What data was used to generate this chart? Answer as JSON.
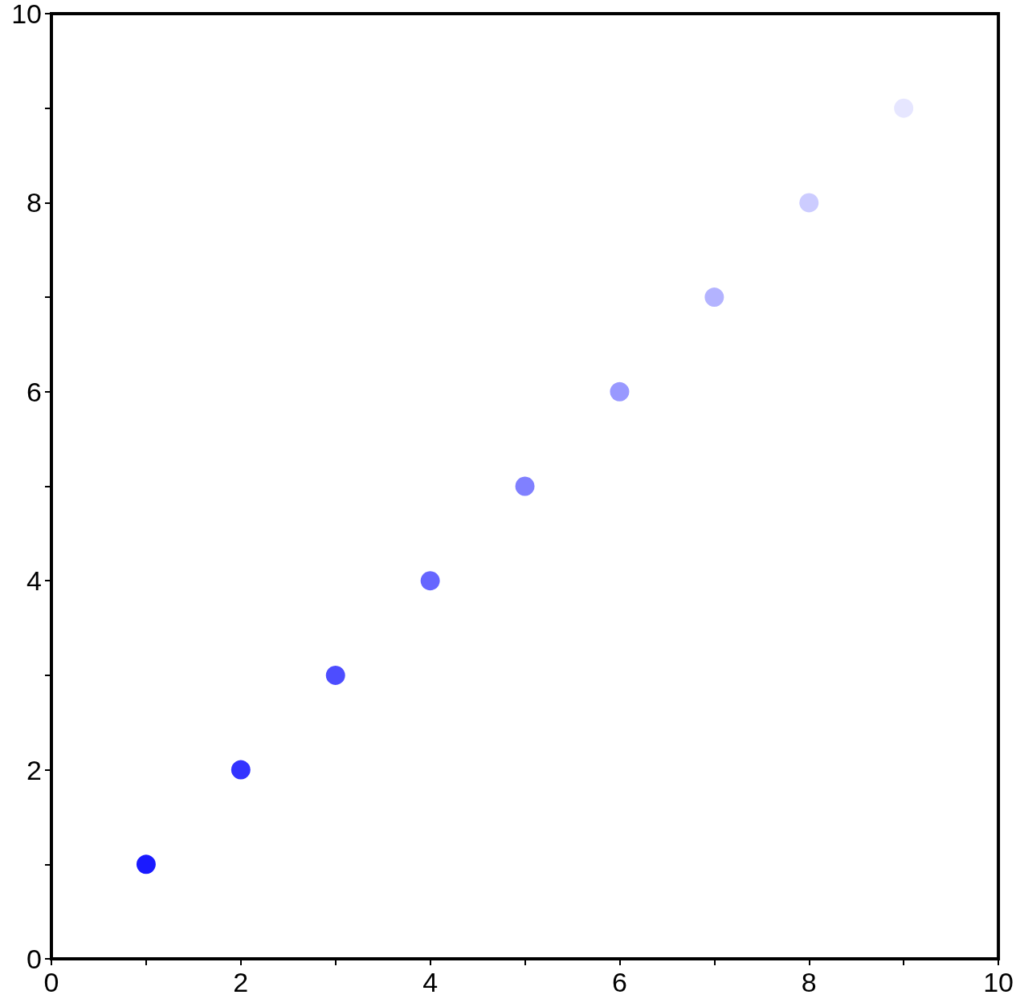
{
  "chart_data": {
    "type": "scatter",
    "x": [
      1,
      2,
      3,
      4,
      5,
      6,
      7,
      8,
      9
    ],
    "values": [
      1,
      2,
      3,
      4,
      5,
      6,
      7,
      8,
      9
    ],
    "colors": [
      "#1a1aff",
      "#3333ff",
      "#4d4dff",
      "#6666ff",
      "#8080ff",
      "#9999ff",
      "#b3b3ff",
      "#ccccff",
      "#e6e6ff"
    ],
    "xlim": [
      0,
      10
    ],
    "xticks": [
      0,
      {
        "value": 1,
        "label": null
      },
      2,
      {
        "value": 3,
        "label": null
      },
      4,
      {
        "value": 5,
        "label": null
      },
      6,
      {
        "value": 7,
        "label": null
      },
      8,
      {
        "value": 9,
        "label": null
      },
      10
    ],
    "ylim": [
      0,
      10
    ],
    "yticks": [
      0,
      {
        "value": 1,
        "label": null
      },
      2,
      {
        "value": 3,
        "label": null
      },
      4,
      {
        "value": 5,
        "label": null
      },
      6,
      {
        "value": 7,
        "label": null
      },
      8,
      {
        "value": 9,
        "label": null
      },
      10
    ],
    "marker": "circle",
    "grid": false
  }
}
